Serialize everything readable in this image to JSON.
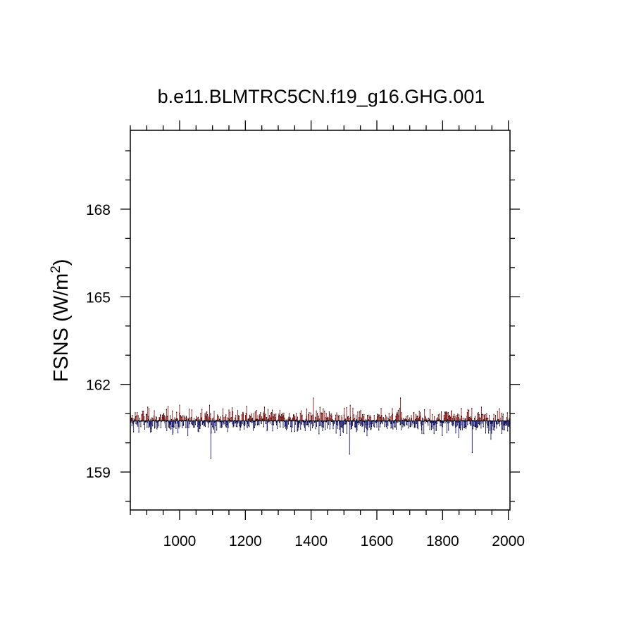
{
  "chart_data": {
    "type": "bar",
    "title": "b.e11.BLMTRC5CN.f19_g16.GHG.001",
    "ylabel_main": "FSNS (W/m",
    "ylabel_sup": "2",
    "ylabel_close": ")",
    "xlabel": "",
    "xlim": [
      850,
      2005
    ],
    "ylim": [
      157.7,
      170.7
    ],
    "reference_value": 160.75,
    "x_ticks": [
      1000,
      1200,
      1400,
      1600,
      1800,
      2000
    ],
    "y_ticks": [
      159,
      162,
      165,
      168
    ],
    "x_start": 850,
    "x_end": 2005,
    "grid": false,
    "colors": {
      "above": "#8b1a1a",
      "below": "#1a1a7a",
      "line": "#000000"
    },
    "sample_points": [
      {
        "x": 1095,
        "y": 159.45
      },
      {
        "x": 1407,
        "y": 162.0
      },
      {
        "x": 1517,
        "y": 159.6
      },
      {
        "x": 1672,
        "y": 161.55
      },
      {
        "x": 1890,
        "y": 159.65
      }
    ]
  }
}
